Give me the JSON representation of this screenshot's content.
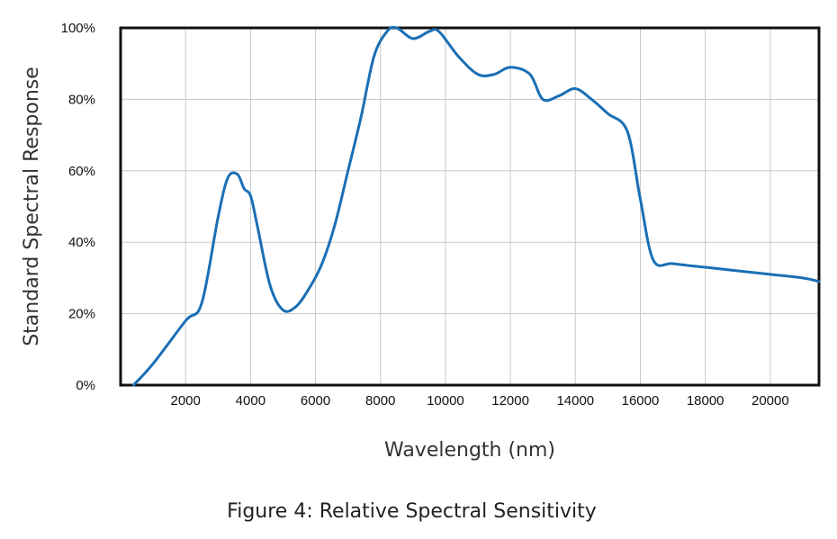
{
  "caption": "Figure 4: Relative Spectral Sensitivity",
  "chart_data": {
    "type": "line",
    "title": "",
    "xlabel": "Wavelength (nm)",
    "ylabel": "Standard Spectral Response",
    "xlim": [
      0,
      21500
    ],
    "ylim": [
      0,
      100
    ],
    "x_ticks": [
      2000,
      4000,
      6000,
      8000,
      10000,
      12000,
      14000,
      16000,
      18000,
      20000
    ],
    "x_tick_labels": [
      "2000",
      "4000",
      "6000",
      "8000",
      "10000",
      "12000",
      "14000",
      "16000",
      "18000",
      "20000"
    ],
    "y_ticks": [
      0,
      20,
      40,
      60,
      80,
      100
    ],
    "y_tick_labels": [
      "0%",
      "20%",
      "40%",
      "60%",
      "80%",
      "100%"
    ],
    "grid": true,
    "line_color": "#1a6fb5",
    "series": [
      {
        "x": [
          400,
          1000,
          2000,
          2500,
          3000,
          3300,
          3600,
          3800,
          4000,
          4200,
          4600,
          5000,
          5400,
          5800,
          6200,
          6600,
          7000,
          7400,
          7800,
          8200,
          8500,
          9000,
          9500,
          9800,
          10400,
          11000,
          11500,
          12000,
          12600,
          13000,
          13500,
          14000,
          14500,
          15000,
          15600,
          16000,
          16400,
          17000,
          18000,
          19000,
          20000,
          21000,
          21500
        ],
        "y": [
          0,
          6,
          18,
          23,
          47,
          58,
          59,
          55,
          53,
          45,
          28,
          21,
          22,
          27,
          34,
          45,
          60,
          75,
          92,
          99,
          100,
          97,
          99,
          99,
          92,
          87,
          87,
          89,
          87,
          80,
          81,
          83,
          80,
          76,
          71,
          52,
          35,
          34,
          33,
          32,
          31,
          30,
          29
        ]
      }
    ]
  }
}
